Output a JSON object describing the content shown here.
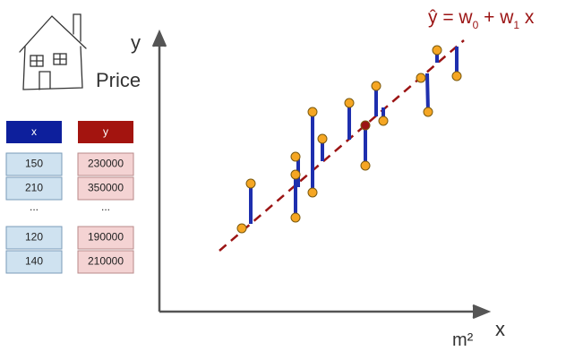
{
  "icon_label": "Price",
  "axes": {
    "y": "y",
    "x": "x",
    "x_unit": "m²"
  },
  "equation": {
    "parts": [
      "ŷ = w",
      "0",
      " + w",
      "1",
      " x"
    ]
  },
  "table": {
    "headers": [
      "x",
      "y"
    ],
    "rows": [
      [
        "150",
        "230000"
      ],
      [
        "210",
        "350000"
      ],
      [
        "...",
        "..."
      ],
      [
        "120",
        "190000"
      ],
      [
        "140",
        "210000"
      ]
    ]
  }
}
